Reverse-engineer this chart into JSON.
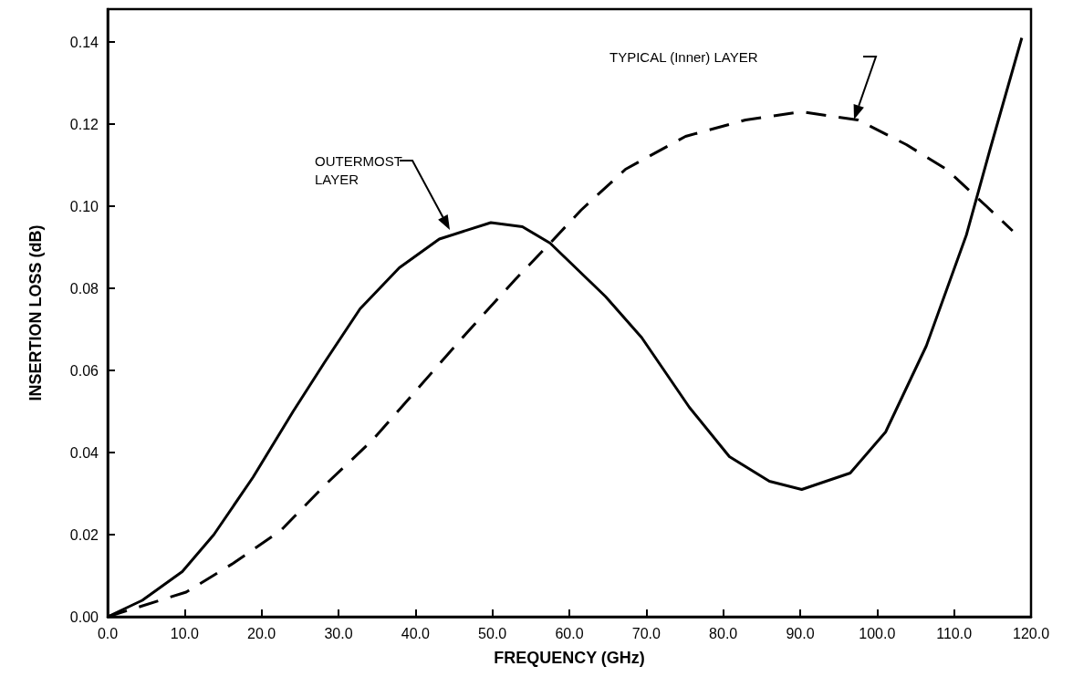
{
  "chart_data": {
    "type": "line",
    "xlabel": "FREQUENCY (GHz)",
    "ylabel": "INSERTION LOSS (dB)",
    "xlim": [
      0,
      120
    ],
    "ylim": [
      0,
      0.148
    ],
    "xticks": [
      {
        "value": 0,
        "label": "0.0"
      },
      {
        "value": 10,
        "label": "10.0"
      },
      {
        "value": 20,
        "label": "20.0"
      },
      {
        "value": 30,
        "label": "30.0"
      },
      {
        "value": 40,
        "label": "40.0"
      },
      {
        "value": 50,
        "label": "50.0"
      },
      {
        "value": 60,
        "label": "60.0"
      },
      {
        "value": 70,
        "label": "70.0"
      },
      {
        "value": 80,
        "label": "80.0"
      },
      {
        "value": 90,
        "label": "90.0"
      },
      {
        "value": 100,
        "label": "100.0"
      },
      {
        "value": 110,
        "label": "110.0"
      },
      {
        "value": 120,
        "label": "120.0"
      }
    ],
    "yticks": [
      {
        "value": 0,
        "label": "0.00"
      },
      {
        "value": 0.02,
        "label": "0.02"
      },
      {
        "value": 0.04,
        "label": "0.04"
      },
      {
        "value": 0.06,
        "label": "0.06"
      },
      {
        "value": 0.08,
        "label": "0.08"
      },
      {
        "value": 0.1,
        "label": "0.10"
      },
      {
        "value": 0.12,
        "label": "0.12"
      },
      {
        "value": 0.14,
        "label": "0.14"
      }
    ],
    "grid": false,
    "marker": "none",
    "series": [
      {
        "color": "#000000",
        "line_style": "solid",
        "x": [
          0,
          4.5,
          9.7,
          13.8,
          18.9,
          24.1,
          28.2,
          32.8,
          37.9,
          43.1,
          49.8,
          53.9,
          57.5,
          64.7,
          69.4,
          75.6,
          80.8,
          86,
          90.2,
          96.5,
          101.1,
          106.4,
          111.6,
          114.7,
          118.8
        ],
        "values": [
          0,
          0.004,
          0.011,
          0.02,
          0.034,
          0.05,
          0.062,
          0.075,
          0.085,
          0.092,
          0.096,
          0.095,
          0.091,
          0.078,
          0.068,
          0.051,
          0.039,
          0.033,
          0.031,
          0.035,
          0.045,
          0.066,
          0.093,
          0.114,
          0.141
        ]
      },
      {
        "color": "#000000",
        "line_style": "dashed",
        "x": [
          0,
          10.2,
          16.3,
          22.5,
          28.2,
          34.4,
          40.5,
          46.6,
          52.9,
          57.5,
          61.5,
          67.3,
          75.1,
          82.9,
          90.2,
          97.5,
          103.8,
          109,
          114.2,
          117.6
        ],
        "values": [
          0,
          0.006,
          0.013,
          0.021,
          0.032,
          0.043,
          0.056,
          0.069,
          0.082,
          0.091,
          0.099,
          0.109,
          0.117,
          0.121,
          0.123,
          0.121,
          0.115,
          0.109,
          0.1,
          0.094
        ]
      }
    ],
    "annotations": [
      "OUTERMOST\nLAYER",
      "TYPICAL (Inner) LAYER"
    ]
  }
}
